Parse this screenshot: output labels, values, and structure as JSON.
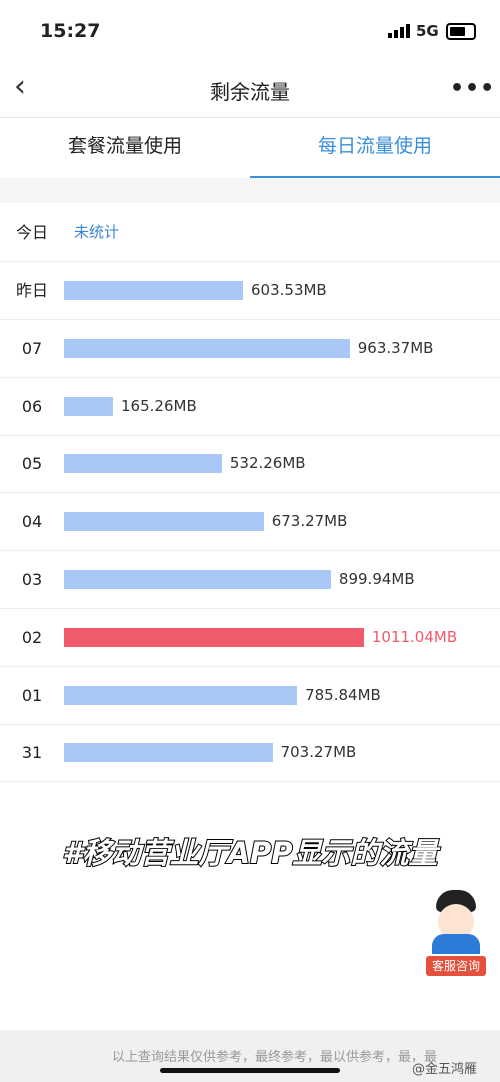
{
  "status_bar": {
    "time": "15:27",
    "network": "5G"
  },
  "header": {
    "title": "剩余流量"
  },
  "tabs": {
    "items": [
      "套餐流量使用",
      "每日流量使用"
    ],
    "active": 1
  },
  "today": {
    "label": "今日",
    "status": "未统计"
  },
  "usage": {
    "bar_color": "#a9c8f5",
    "highlight_color": "#ef5a6c",
    "highlight_row": 6,
    "rows": [
      {
        "label": "昨日",
        "value": 603.53,
        "value_label": "603.53MB"
      },
      {
        "label": "07",
        "value": 963.37,
        "value_label": "963.37MB"
      },
      {
        "label": "06",
        "value": 165.26,
        "value_label": "165.26MB"
      },
      {
        "label": "05",
        "value": 532.26,
        "value_label": "532.26MB"
      },
      {
        "label": "04",
        "value": 673.27,
        "value_label": "673.27MB"
      },
      {
        "label": "03",
        "value": 899.94,
        "value_label": "899.94MB"
      },
      {
        "label": "02",
        "value": 1011.04,
        "value_label": "1011.04MB"
      },
      {
        "label": "01",
        "value": 785.84,
        "value_label": "785.84MB"
      },
      {
        "label": "31",
        "value": 703.27,
        "value_label": "703.27MB"
      }
    ]
  },
  "caption": "#移动营业厅APP显示的流量",
  "service_button": "客服咨询",
  "footer": {
    "note": "以上查询结果仅供参考，最终参考，最以供参考，最，最",
    "watermark": "@金五鸿雁"
  }
}
